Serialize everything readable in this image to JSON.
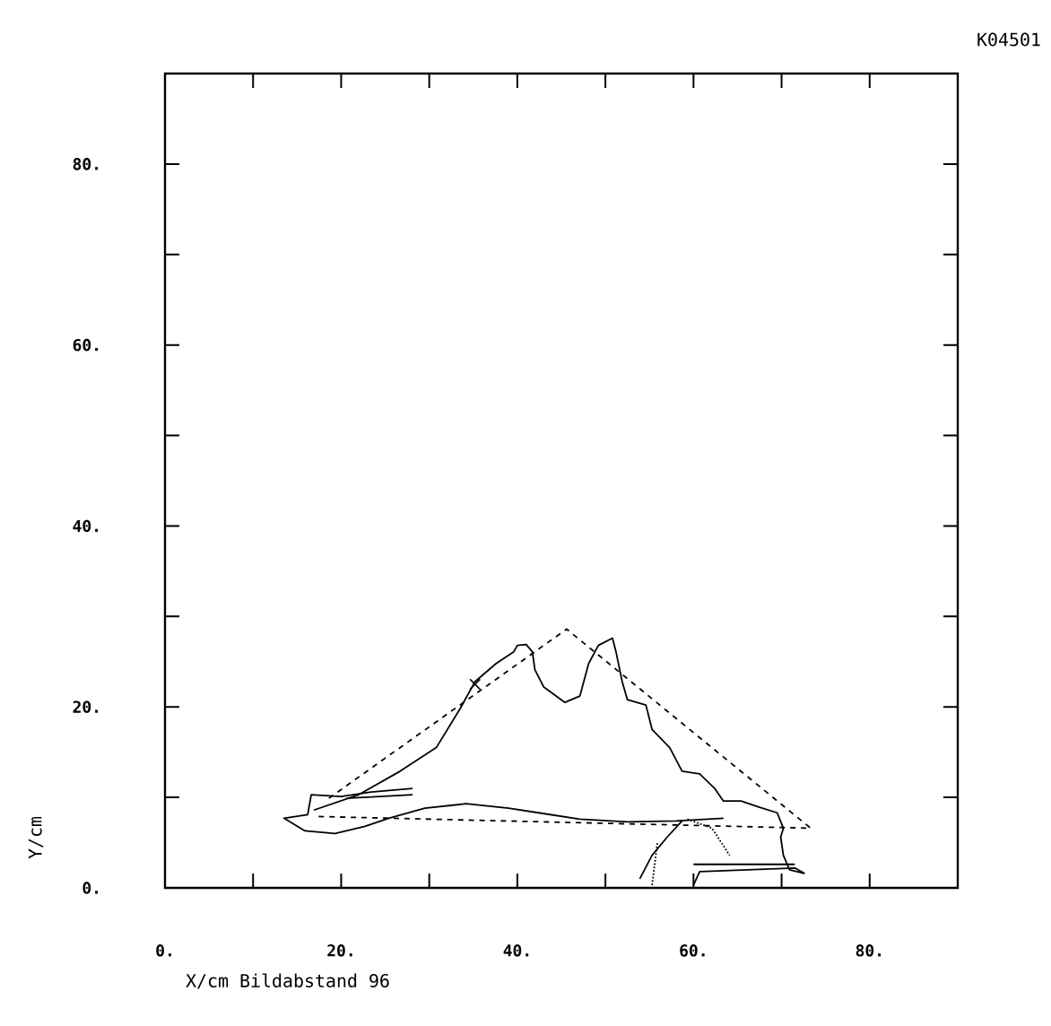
{
  "chart_data": {
    "type": "line",
    "title": "K04501",
    "xlabel": "X/cm  Bildabstand   96",
    "ylabel": "Y/cm",
    "xlim": [
      0,
      90
    ],
    "ylim": [
      0,
      90
    ],
    "xticks": [
      {
        "value": 0,
        "label": "0."
      },
      {
        "value": 10,
        "label": null
      },
      {
        "value": 20,
        "label": "20."
      },
      {
        "value": 30,
        "label": null
      },
      {
        "value": 40,
        "label": "40."
      },
      {
        "value": 50,
        "label": null
      },
      {
        "value": 60,
        "label": "60."
      },
      {
        "value": 70,
        "label": null
      },
      {
        "value": 80,
        "label": "80."
      },
      {
        "value": 90,
        "label": null
      }
    ],
    "yticks": [
      {
        "value": 0,
        "label": "0."
      },
      {
        "value": 10,
        "label": null
      },
      {
        "value": 20,
        "label": "20."
      },
      {
        "value": 30,
        "label": null
      },
      {
        "value": 40,
        "label": "40."
      },
      {
        "value": 50,
        "label": null
      },
      {
        "value": 60,
        "label": "60."
      },
      {
        "value": 70,
        "label": null
      },
      {
        "value": 80,
        "label": "80."
      },
      {
        "value": 90,
        "label": null
      }
    ],
    "series": [
      {
        "color": "#000000",
        "line_style": "solid",
        "x": [
          16.9,
          22.0,
          26.7,
          30.8,
          33.5,
          35.2,
          37.6,
          39.6,
          40.0,
          41.0,
          41.7,
          42.0,
          43.0,
          45.4,
          47.1,
          48.1,
          49.2,
          50.8,
          51.2,
          51.9,
          52.5,
          54.6,
          55.3,
          57.3,
          58.7,
          60.7,
          62.4,
          63.4,
          65.4,
          67.5,
          69.5,
          70.2,
          69.9,
          70.2,
          70.9,
          72.6
        ],
        "values": [
          8.6,
          10.3,
          12.9,
          15.5,
          19.8,
          22.8,
          24.8,
          26.1,
          26.8,
          26.9,
          26.1,
          24.1,
          22.2,
          20.5,
          21.2,
          24.8,
          26.8,
          27.6,
          26.1,
          22.8,
          20.8,
          20.2,
          17.5,
          15.5,
          12.9,
          12.6,
          11.0,
          9.6,
          9.6,
          8.9,
          8.3,
          6.6,
          5.6,
          3.6,
          2.0,
          1.6
        ]
      },
      {
        "color": "#000000",
        "line_style": "solid",
        "x": [
          28.1,
          23.4,
          20.0,
          16.6,
          16.2,
          13.5,
          15.9,
          19.3,
          22.7,
          25.4,
          29.5,
          34.2,
          39.0,
          42.4,
          47.1,
          52.5,
          58.0,
          63.4
        ],
        "values": [
          11.0,
          10.6,
          10.1,
          10.3,
          8.1,
          7.7,
          6.3,
          6.0,
          6.8,
          7.7,
          8.8,
          9.3,
          8.8,
          8.3,
          7.6,
          7.3,
          7.4,
          7.7
        ]
      },
      {
        "color": "#000000",
        "line_style": "solid",
        "x": [
          20.6,
          28.1
        ],
        "values": [
          9.9,
          10.3
        ]
      },
      {
        "color": "#000000",
        "line_style": "dashed",
        "x": [
          18.6,
          45.6,
          73.3,
          16.9
        ],
        "values": [
          9.9,
          28.6,
          6.6,
          7.9
        ]
      },
      {
        "color": "#000000",
        "line_style": "solid",
        "x": [
          53.9,
          55.3,
          57.0,
          58.7
        ],
        "values": [
          1.0,
          3.6,
          5.6,
          7.4
        ]
      },
      {
        "color": "#000000",
        "line_style": "dotted",
        "x": [
          59.3,
          62.1,
          64.1
        ],
        "values": [
          7.6,
          6.6,
          3.6
        ]
      },
      {
        "color": "#000000",
        "line_style": "dotted",
        "x": [
          55.3,
          55.9
        ],
        "values": [
          0.3,
          5.0
        ]
      },
      {
        "color": "#000000",
        "line_style": "solid",
        "x": [
          60.0,
          71.5
        ],
        "values": [
          2.6,
          2.6
        ]
      },
      {
        "color": "#000000",
        "line_style": "solid",
        "x": [
          60.0,
          60.7,
          66.1,
          71.5,
          72.6
        ],
        "values": [
          0.3,
          1.8,
          2.0,
          2.2,
          1.6
        ]
      },
      {
        "type": "scatter",
        "marker": "cross",
        "color": "#000000",
        "x": [
          35.2
        ],
        "values": [
          22.5
        ]
      }
    ]
  }
}
